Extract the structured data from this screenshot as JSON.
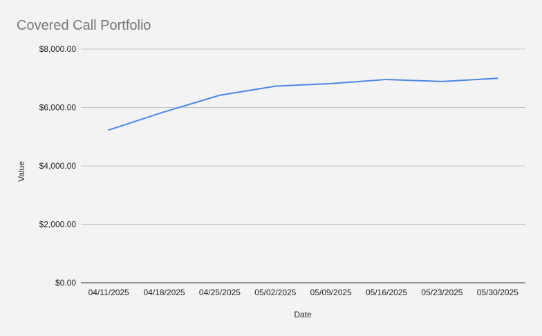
{
  "chart_data": {
    "type": "line",
    "title": "Covered Call Portfolio",
    "xlabel": "Date",
    "ylabel": "Value",
    "categories": [
      "04/11/2025",
      "04/18/2025",
      "04/25/2025",
      "05/02/2025",
      "05/09/2025",
      "05/16/2025",
      "05/23/2025",
      "05/30/2025"
    ],
    "series": [
      {
        "values": [
          5230,
          5850,
          6420,
          6730,
          6820,
          6960,
          6890,
          7000
        ]
      }
    ],
    "ylim": [
      0,
      8000
    ],
    "yticks": [
      {
        "value": 0,
        "label": "$0.00"
      },
      {
        "value": 2000,
        "label": "$2,000.00"
      },
      {
        "value": 4000,
        "label": "$4,000.00"
      },
      {
        "value": 6000,
        "label": "$6,000.00"
      },
      {
        "value": 8000,
        "label": "$8,000.00"
      }
    ],
    "grid": true,
    "legend": "none",
    "colors": {
      "line": "#4a86e8",
      "background": "#f3f3f3",
      "title": "#757575"
    }
  }
}
